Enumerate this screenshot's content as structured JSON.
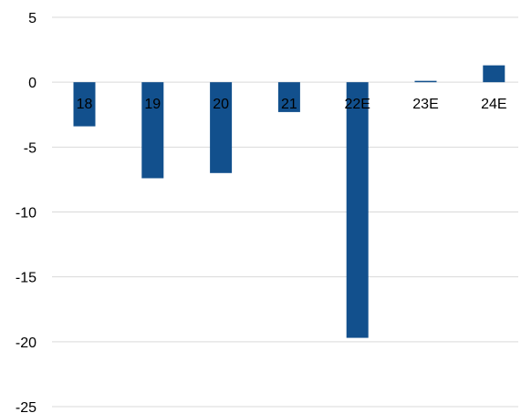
{
  "chart_data": {
    "type": "bar",
    "title": "",
    "xlabel": "",
    "ylabel": "",
    "categories": [
      "18",
      "19",
      "20",
      "21",
      "22E",
      "23E",
      "24E"
    ],
    "values": [
      -3.4,
      -7.4,
      -7.0,
      -2.3,
      -19.7,
      0.1,
      1.3
    ],
    "ylim": [
      -25,
      5
    ],
    "yticks": [
      5,
      0,
      -5,
      -10,
      -15,
      -20,
      -25
    ],
    "ytick_labels": [
      "5",
      "0",
      "-5",
      "-10",
      "-15",
      "-20",
      "-25"
    ],
    "grid": true,
    "legend": "none",
    "bar_color": "#12508d",
    "grid_color": "#d9d9d9"
  }
}
